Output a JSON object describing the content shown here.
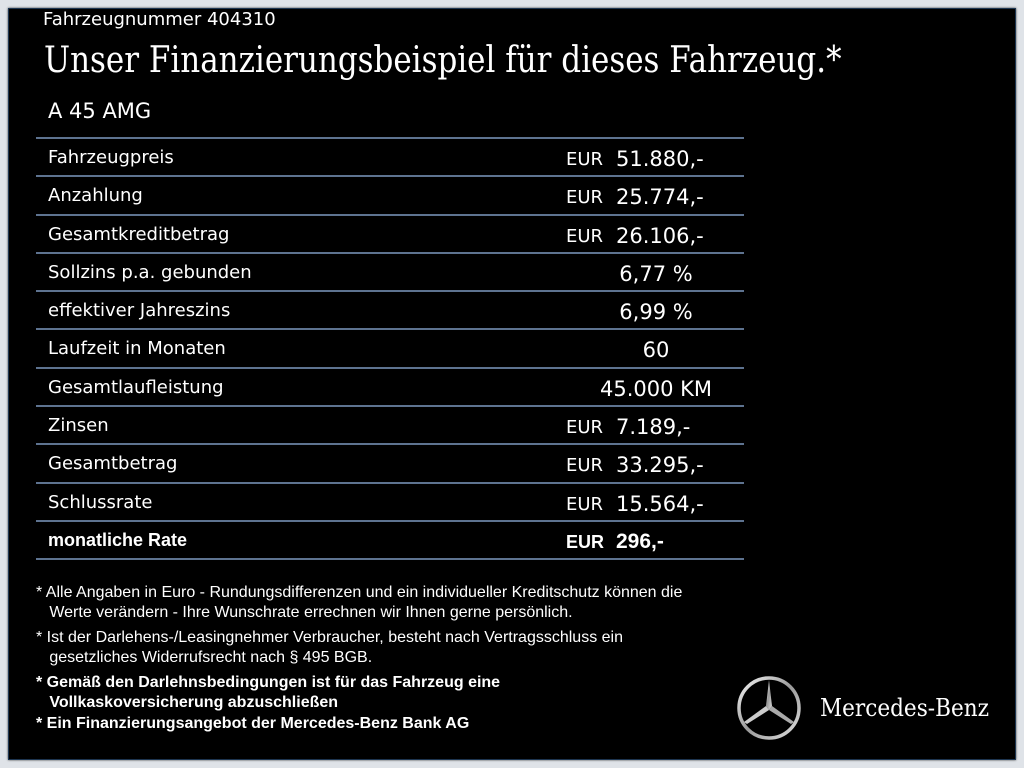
{
  "header": {
    "vehicle_number": "Fahrzeugnummer  404310",
    "title": "Unser Finanzierungsbeispiel für dieses Fahrzeug.*",
    "model": "A 45 AMG"
  },
  "rows": [
    {
      "label": "Fahrzeugpreis",
      "currency": "EUR",
      "value": "51.880,-"
    },
    {
      "label": "Anzahlung",
      "currency": "EUR",
      "value": "25.774,-"
    },
    {
      "label": "Gesamtkreditbetrag",
      "currency": "EUR",
      "value": "26.106,-"
    },
    {
      "label": "Sollzins p.a. gebunden",
      "currency": "",
      "value": "6,77 %"
    },
    {
      "label": "effektiver Jahreszins",
      "currency": "",
      "value": "6,99 %"
    },
    {
      "label": "Laufzeit in Monaten",
      "currency": "",
      "value": "60"
    },
    {
      "label": "Gesamtlaufleistung",
      "currency": "",
      "value": "45.000 KM"
    },
    {
      "label": "Zinsen",
      "currency": "EUR",
      "value": "7.189,-"
    },
    {
      "label": "Gesamtbetrag",
      "currency": "EUR",
      "value": "33.295,-"
    },
    {
      "label": "Schlussrate",
      "currency": "EUR",
      "value": "15.564,-"
    },
    {
      "label": "monatliche Rate",
      "currency": "EUR",
      "value": "296,-"
    }
  ],
  "notes": [
    "* Alle Angaben in Euro - Rundungsdifferenzen und ein individueller Kreditschutz können die\n   Werte verändern - Ihre Wunschrate errechnen wir Ihnen gerne persönlich.",
    "* Ist der Darlehens-/Leasingnehmer Verbraucher, besteht nach Vertragsschluss ein\n   gesetzliches Widerrufsrecht nach § 495 BGB.",
    "* Gemäß den Darlehnsbedingungen ist für das Fahrzeug eine\n   Vollkaskoversicherung abzuschließen",
    "* Ein Finanzierungsangebot der Mercedes-Benz Bank AG"
  ],
  "brand": {
    "name": "Mercedes-Benz",
    "icon": "mercedes-star-icon"
  }
}
